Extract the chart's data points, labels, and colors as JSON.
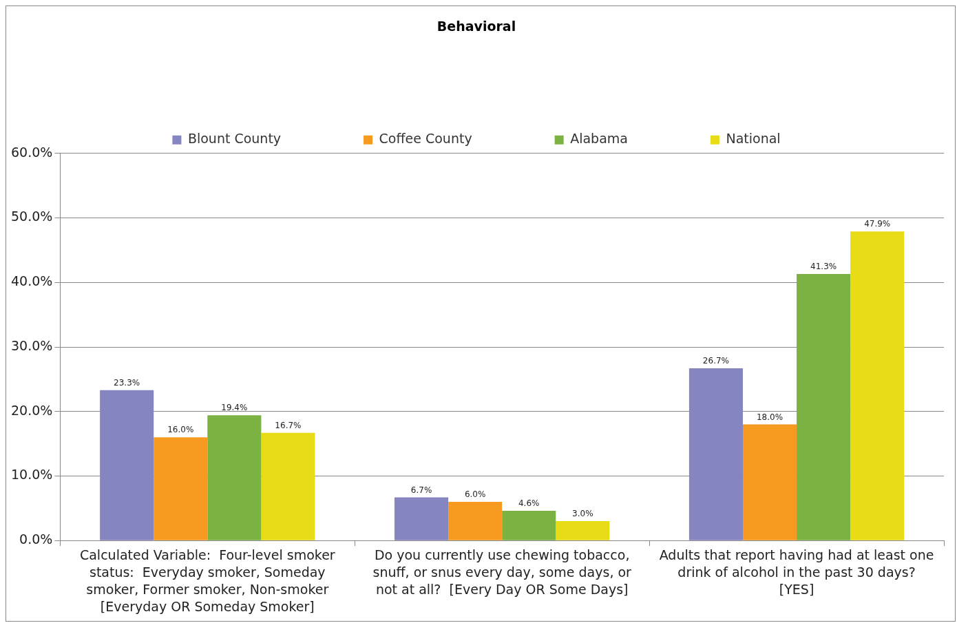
{
  "chart_data": {
    "type": "bar",
    "title": "Behavioral",
    "categories": [
      "Calculated Variable:  Four-level smoker status:  Everyday smoker, Someday smoker, Former smoker, Non-smoker [Everyday OR Someday Smoker]",
      "Do you currently use chewing tobacco, snuff, or snus every day, some days, or not at all?  [Every Day OR Some Days]",
      "Adults that report having had at least one drink of alcohol in the past 30 days? [YES]"
    ],
    "series": [
      {
        "name": "Blount County",
        "color": "#8585c1",
        "values": [
          23.3,
          6.7,
          26.7
        ],
        "value_labels": [
          "23.3%",
          "6.7%",
          "26.7%"
        ]
      },
      {
        "name": "Coffee County",
        "color": "#f79a20",
        "values": [
          16.0,
          6.0,
          18.0
        ],
        "value_labels": [
          "16.0%",
          "6.0%",
          "18.0%"
        ]
      },
      {
        "name": "Alabama",
        "color": "#7bb241",
        "values": [
          19.4,
          4.6,
          41.3
        ],
        "value_labels": [
          "19.4%",
          "4.6%",
          "41.3%"
        ]
      },
      {
        "name": "National",
        "color": "#e8dc16",
        "values": [
          16.7,
          3.0,
          47.9
        ],
        "value_labels": [
          "16.7%",
          "3.0%",
          "47.9%"
        ]
      }
    ],
    "ylim": [
      0,
      60
    ],
    "yticks": [
      {
        "value": 0,
        "label": "0.0%"
      },
      {
        "value": 10,
        "label": "10.0%"
      },
      {
        "value": 20,
        "label": "20.0%"
      },
      {
        "value": 30,
        "label": "30.0%"
      },
      {
        "value": 40,
        "label": "40.0%"
      },
      {
        "value": 50,
        "label": "50.0%"
      },
      {
        "value": 60,
        "label": "60.0%"
      }
    ],
    "grid": "y",
    "legend": "top"
  }
}
